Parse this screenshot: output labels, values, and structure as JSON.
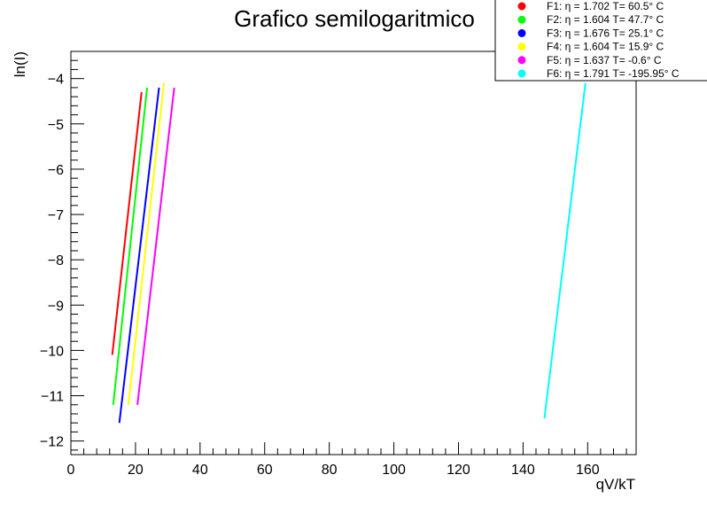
{
  "chart_data": {
    "type": "line",
    "title": "Grafico semilogaritmico",
    "xlabel": "qV/kT",
    "ylabel": "ln(I)",
    "xlim": [
      0,
      175
    ],
    "ylim": [
      -12.3,
      -3.4
    ],
    "x_ticks": [
      0,
      20,
      40,
      60,
      80,
      100,
      120,
      140,
      160
    ],
    "x_tick_labels": [
      "0",
      "20",
      "40",
      "60",
      "80",
      "100",
      "120",
      "140",
      "160"
    ],
    "y_ticks": [
      -12,
      -11,
      -10,
      -9,
      -8,
      -7,
      -6,
      -5,
      -4
    ],
    "y_tick_labels": [
      "−12",
      "−11",
      "−10",
      "−9",
      "−8",
      "−7",
      "−6",
      "−5",
      "−4"
    ],
    "grid": false,
    "legend_position": "top-right",
    "series": [
      {
        "name": "F1: η = 1.702 T= 60.5° C",
        "color": "#ff0000",
        "points": [
          [
            12.8,
            -10.1
          ],
          [
            21.9,
            -4.3
          ]
        ]
      },
      {
        "name": "F2: η = 1.604 T= 47.7° C",
        "color": "#00ff00",
        "points": [
          [
            13.1,
            -11.2
          ],
          [
            23.6,
            -4.2
          ]
        ]
      },
      {
        "name": "F3: η = 1.676 T= 25.1° C",
        "color": "#0000ff",
        "points": [
          [
            15.0,
            -11.6
          ],
          [
            27.3,
            -4.2
          ]
        ]
      },
      {
        "name": "F4: η = 1.604 T= 15.9° C",
        "color": "#ffff00",
        "points": [
          [
            17.8,
            -11.2
          ],
          [
            28.8,
            -4.1
          ]
        ]
      },
      {
        "name": "F5: η = 1.637 T= -0.6° C",
        "color": "#ff00ff",
        "points": [
          [
            20.6,
            -11.2
          ],
          [
            32.0,
            -4.2
          ]
        ]
      },
      {
        "name": "F6: η = 1.791 T= -195.95° C",
        "color": "#00ffff",
        "points": [
          [
            146.6,
            -11.5
          ],
          [
            159.3,
            -4.1
          ]
        ]
      }
    ]
  }
}
